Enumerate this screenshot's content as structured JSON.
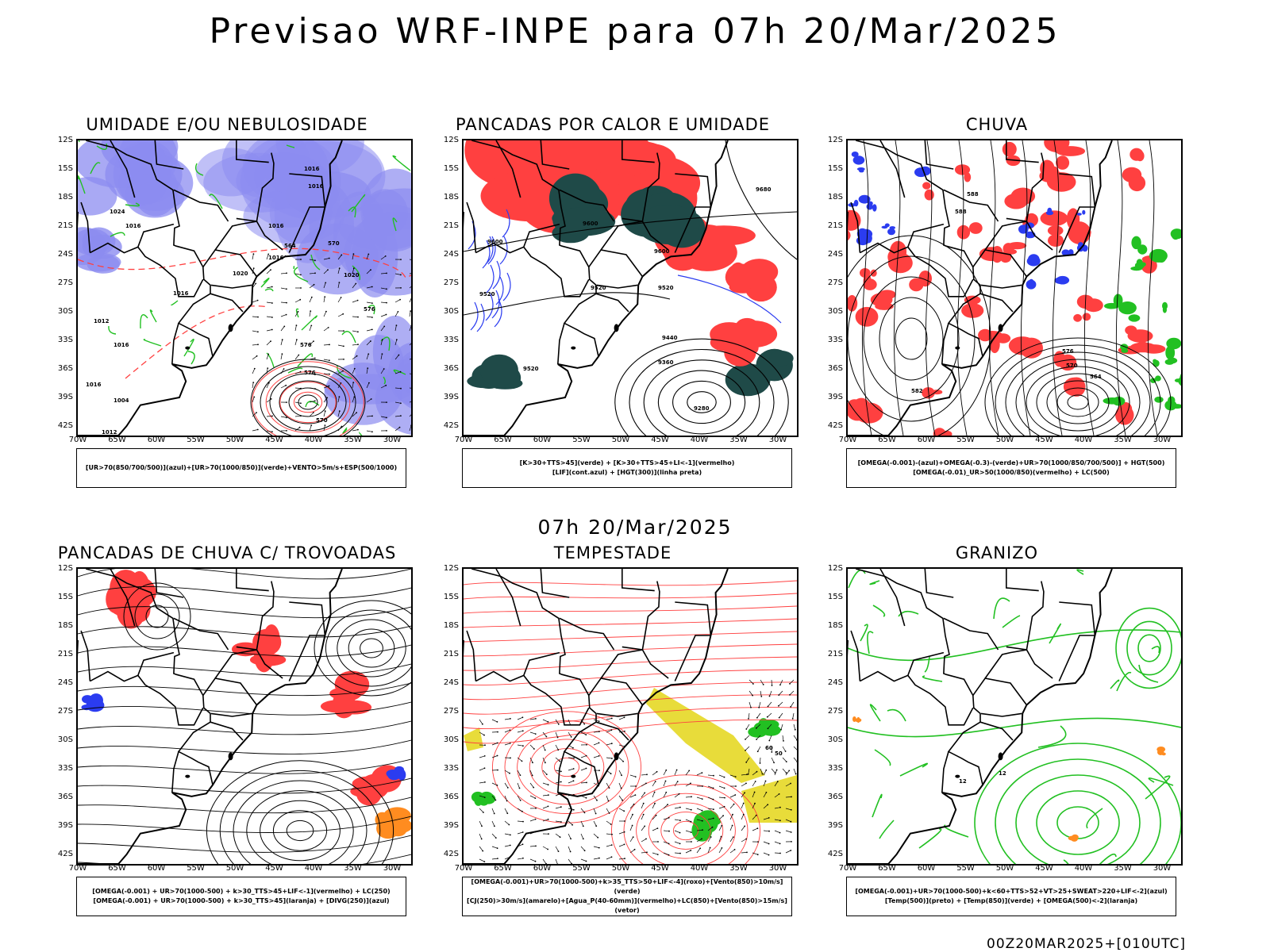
{
  "title": "Previsao WRF-INPE  para 07h 20/Mar/2025",
  "subtitle": "07h 20/Mar/2025",
  "footer": "00Z20MAR2025+[010UTC]",
  "lat_ticks": [
    "12S",
    "15S",
    "18S",
    "21S",
    "24S",
    "27S",
    "30S",
    "33S",
    "36S",
    "39S",
    "42S"
  ],
  "lon_ticks": [
    "70W",
    "65W",
    "60W",
    "55W",
    "50W",
    "45W",
    "40W",
    "35W",
    "30W"
  ],
  "colors": {
    "humidity_blue": "#8c8cf0",
    "green_contour": "#22c022",
    "red": "#ff4040",
    "dark_teal": "#1f4a48",
    "yellow": "#e8dc3a",
    "orange": "#ff8c20",
    "blue_contour": "#2b3cf0"
  },
  "panels": [
    {
      "title": "UMIDADE E/OU NEBULOSIDADE",
      "legend": [
        "[UR>70(850/700/500)](azul)+[UR>70(1000/850)](verde)+VENTO>5m/s+ESP(500/1000)"
      ],
      "labels": [
        "1016",
        "1016",
        "1016",
        "1020",
        "1024",
        "1012",
        "1016",
        "1016",
        "1020",
        "1016",
        "1012",
        "1016",
        "1016",
        "1004",
        "576",
        "576",
        "570",
        "564",
        "570",
        "576"
      ]
    },
    {
      "title": "PANCADAS POR CALOR E UMIDADE",
      "legend": [
        "[K>30+TTS>45](verde) + [K>30+TTS>45+LI<-1](vermelho)",
        "[LIF](cont.azul) + [HGT(300)](linha preta)"
      ],
      "labels": [
        "9680",
        "9600",
        "9600",
        "9600",
        "9520",
        "9520",
        "9520",
        "9520",
        "9440",
        "9360",
        "9280"
      ]
    },
    {
      "title": "CHUVA",
      "legend": [
        "[OMEGA(-0.001)-(azul)+OMEGA(-0.3)-(verde)+UR>70(1000/850/700/500)] + HGT(500)",
        "[OMEGA(-0.01)_UR>50(1000/850)(vermelho) + LC(500)"
      ],
      "labels": [
        "588",
        "588",
        "582",
        "576",
        "570",
        "564"
      ]
    },
    {
      "title": "PANCADAS DE CHUVA C/ TROVOADAS",
      "legend": [
        "[OMEGA(-0.001) + UR>70(1000-500) + k>30_TTS>45+LIF<-1](vermelho) + LC(250)",
        "[OMEGA(-0.001) + UR>70(1000-500) + k>30_TTS>45](laranja) + [DIVG(250)](azul)"
      ],
      "labels": []
    },
    {
      "title": "TEMPESTADE",
      "legend": [
        "[OMEGA(-0.001)+UR>70(1000-500)+k>35_TTS>50+LIF<-4](roxo)+[Vento(850)>10m/s](verde)",
        "[CJ(250)>30m/s](amarelo)+[Agua_P(40-60mm)](vermelho)+LC(850)+[Vento(850)>15m/s](vetor)"
      ],
      "labels": [
        "60",
        "50"
      ]
    },
    {
      "title": "GRANIZO",
      "legend": [
        "[OMEGA(-0.001)+UR>70(1000-500)+k<60+TTS>52+VT>25+SWEAT>220+LIF<-2](azul)",
        "[Temp(500)](preto) + [Temp(850)](verde) + [OMEGA(500)<-2](laranja)"
      ],
      "labels": [
        "12",
        "12"
      ]
    }
  ]
}
